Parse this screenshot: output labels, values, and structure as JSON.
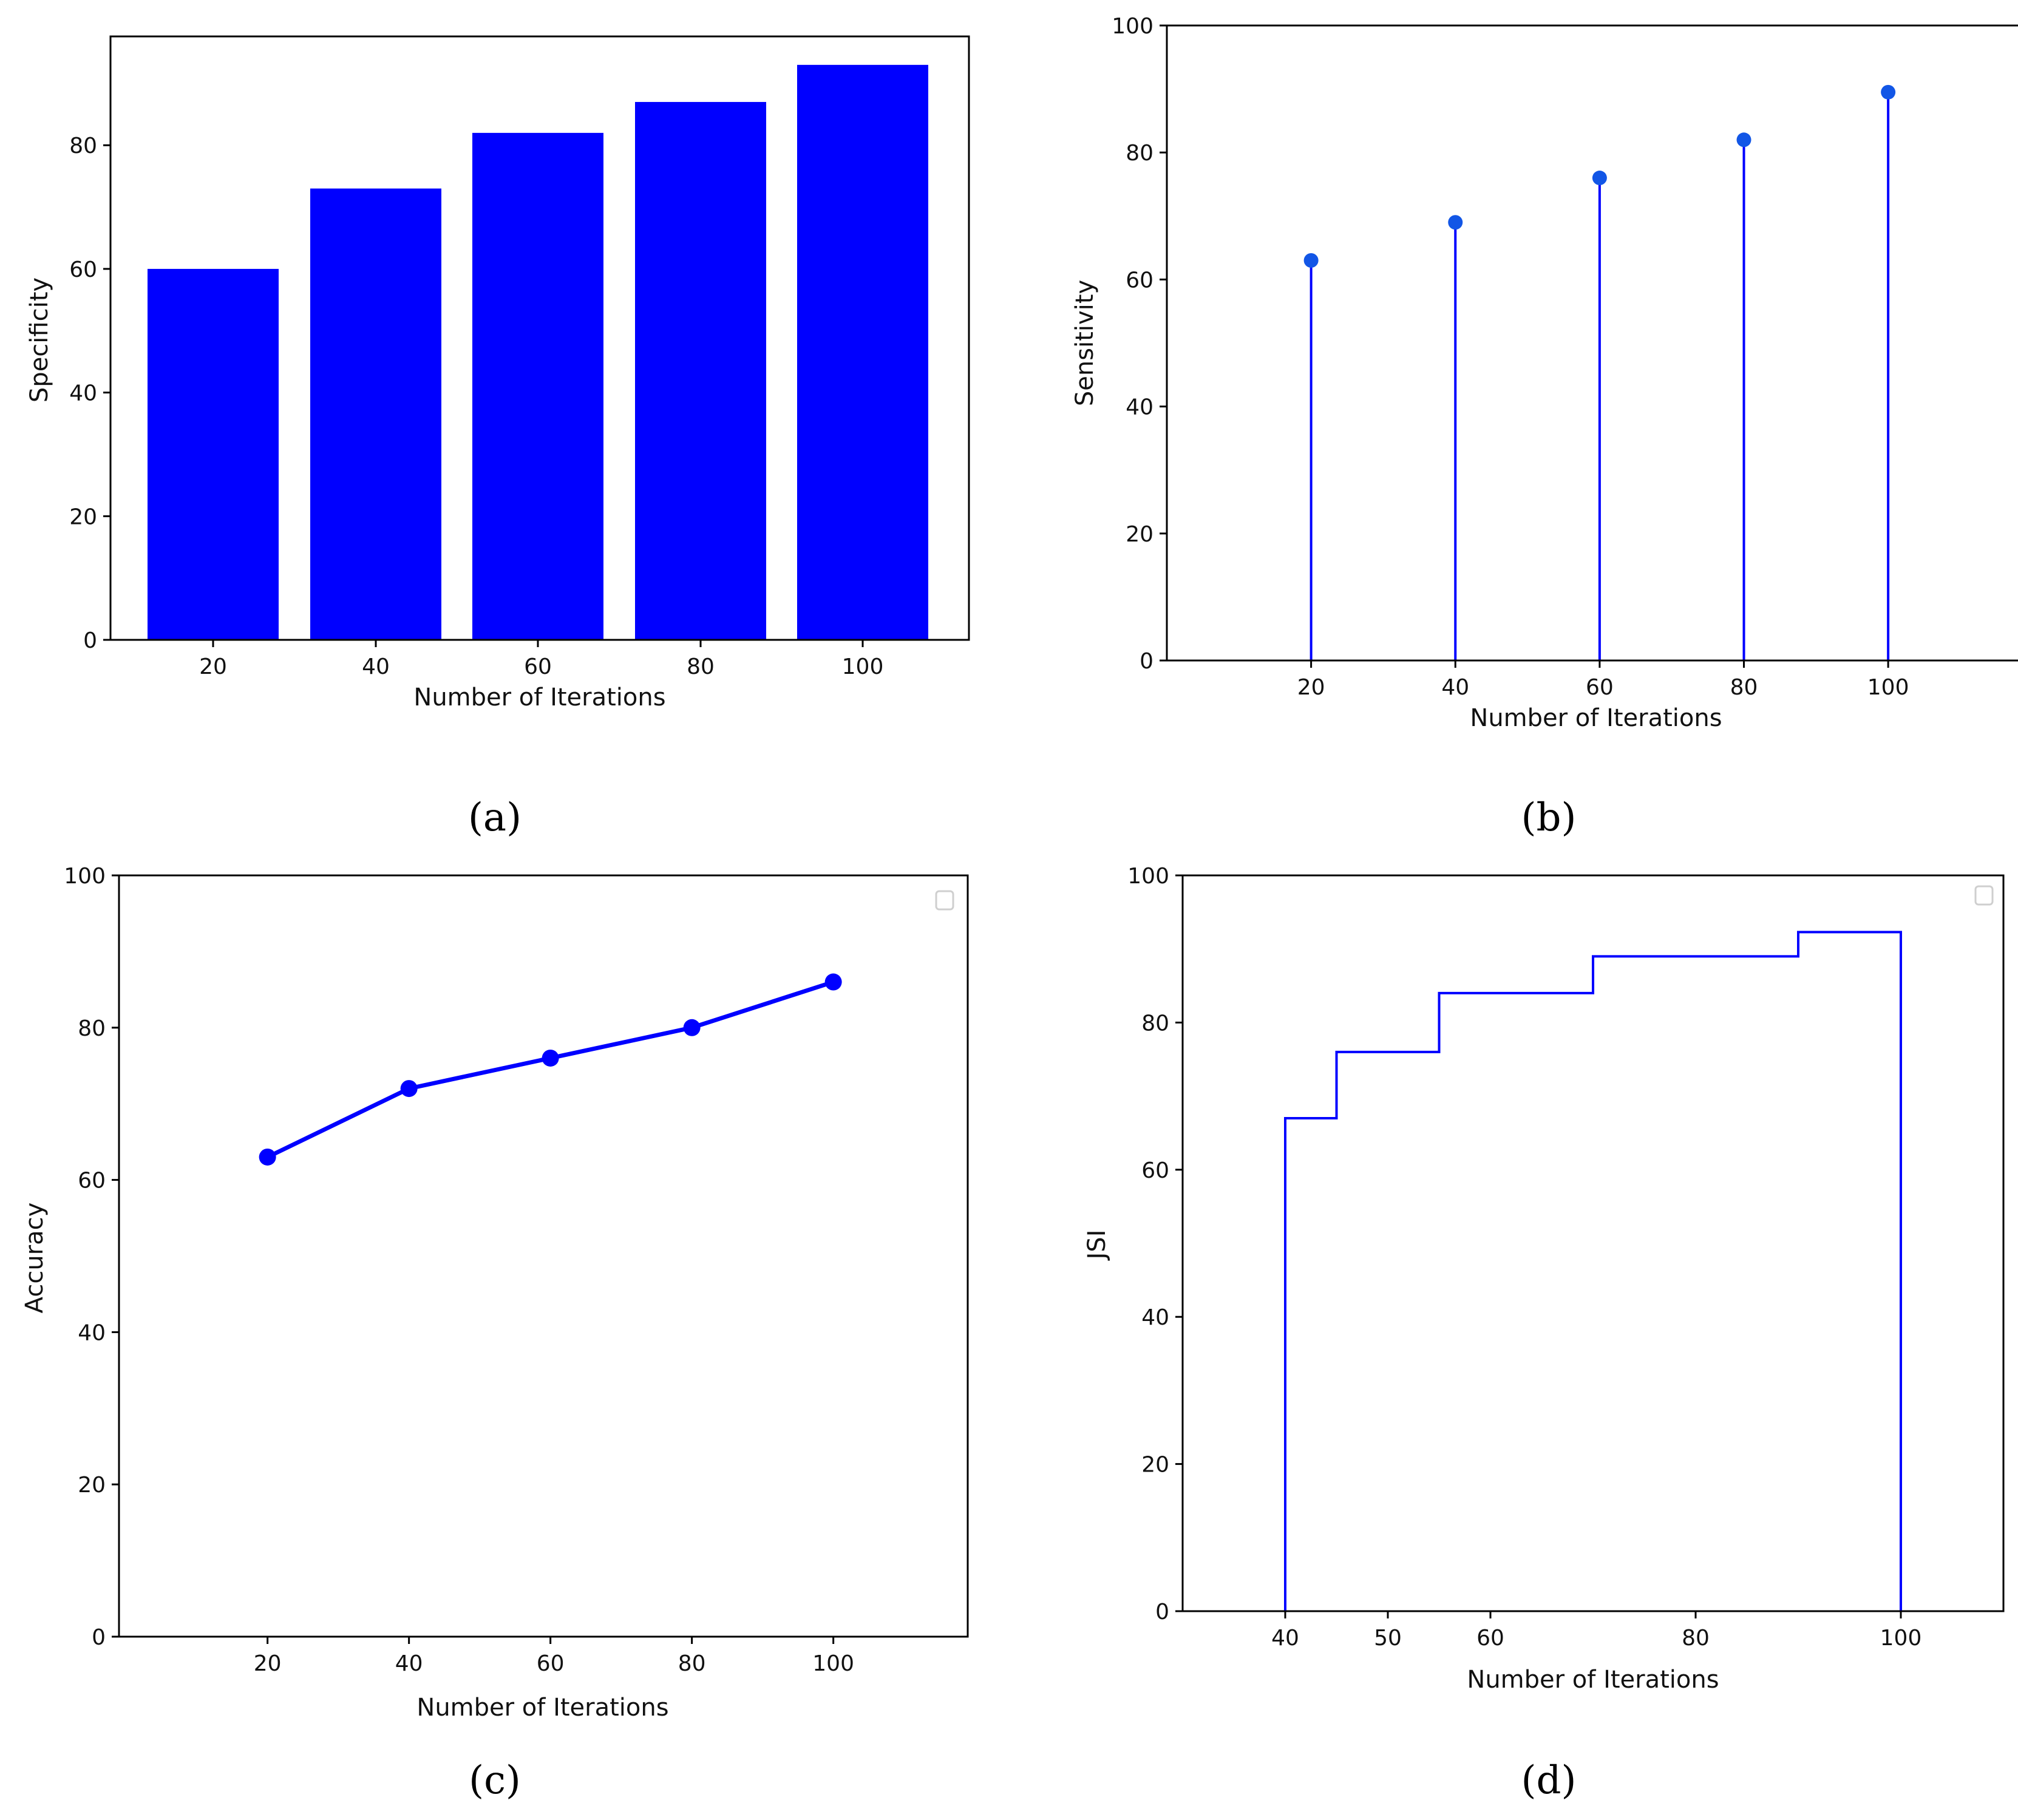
{
  "colors": {
    "series": "#0000ff",
    "marker_b": "#1256e6"
  },
  "chart_data": [
    {
      "id": "a",
      "panel_label": "(a)",
      "type": "bar",
      "categories": [
        "20",
        "40",
        "60",
        "80",
        "100"
      ],
      "values": [
        60,
        73,
        82,
        87,
        93
      ],
      "xlabel": "Number of Iterations",
      "ylabel": "Specificity",
      "ylim": [
        0,
        97.6
      ],
      "yticks": [
        0,
        20,
        40,
        60,
        80
      ],
      "ytick_labels": [
        "0",
        "20",
        "40",
        "60",
        "80"
      ],
      "legend": "none"
    },
    {
      "id": "b",
      "panel_label": "(b)",
      "type": "stem",
      "x": [
        20,
        40,
        60,
        80,
        100
      ],
      "y": [
        63,
        69,
        76,
        82,
        89.5
      ],
      "xlabel": "Number of Iterations",
      "ylabel": "Sensitivity",
      "xlim": [
        0,
        118
      ],
      "ylim": [
        0,
        100
      ],
      "xticks": [
        20,
        40,
        60,
        80,
        100
      ],
      "xtick_labels": [
        "20",
        "40",
        "60",
        "80",
        "100"
      ],
      "yticks": [
        0,
        20,
        40,
        60,
        80,
        100
      ],
      "ytick_labels": [
        "0",
        "20",
        "40",
        "60",
        "80",
        "100"
      ],
      "legend": "none"
    },
    {
      "id": "c",
      "panel_label": "(c)",
      "type": "line",
      "x": [
        20,
        40,
        60,
        80,
        100
      ],
      "y": [
        63,
        72,
        76,
        80,
        86
      ],
      "xlabel": "Number of Iterations",
      "ylabel": "Accuracy",
      "xlim": [
        -1,
        119
      ],
      "ylim": [
        0,
        100
      ],
      "xticks": [
        20,
        40,
        60,
        80,
        100
      ],
      "xtick_labels": [
        "20",
        "40",
        "60",
        "80",
        "100"
      ],
      "yticks": [
        0,
        20,
        40,
        60,
        80,
        100
      ],
      "ytick_labels": [
        "0",
        "20",
        "40",
        "60",
        "80",
        "100"
      ],
      "legend": "top-right (empty)"
    },
    {
      "id": "d",
      "panel_label": "(d)",
      "type": "step",
      "x": [
        40,
        45,
        55,
        70,
        90,
        100
      ],
      "y": [
        67,
        76,
        84,
        89,
        92.3,
        92.3
      ],
      "baseline": 0,
      "xlabel": "Number of Iterations",
      "ylabel": "JSI",
      "xlim": [
        30,
        110
      ],
      "ylim": [
        0,
        100
      ],
      "xticks": [
        40,
        50,
        60,
        80,
        100
      ],
      "xtick_labels": [
        "40",
        "50",
        "60",
        "80",
        "100"
      ],
      "yticks": [
        0,
        20,
        40,
        60,
        80,
        100
      ],
      "ytick_labels": [
        "0",
        "20",
        "40",
        "60",
        "80",
        "100"
      ],
      "legend": "top-right (empty)"
    }
  ]
}
